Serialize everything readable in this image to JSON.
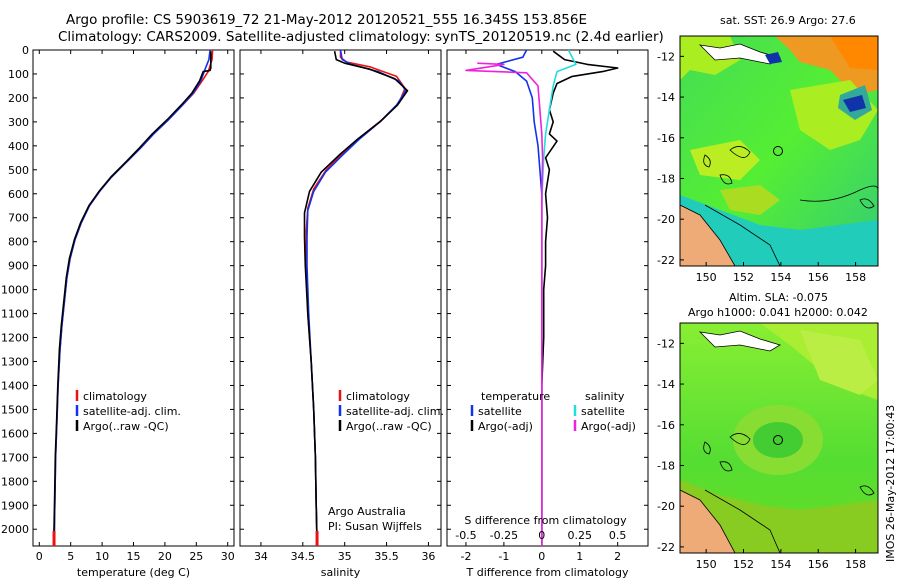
{
  "header": {
    "line1": "Argo profile: CS 5903619_72 21-May-2012 20120521_555 16.345S 153.856E",
    "line2": "Climatology: CARS2009. Satellite-adjusted climatology: synTS_20120519.nc (2.4d earlier)"
  },
  "colors": {
    "climatology": "#ee1111",
    "satellite": "#1133ee",
    "argo": "#000000",
    "sal_sat": "#22dddd",
    "sal_argo": "#ee22dd"
  },
  "depth_axis": {
    "ticks": [
      0,
      100,
      200,
      300,
      400,
      500,
      600,
      700,
      800,
      900,
      1000,
      1100,
      1200,
      1300,
      1400,
      1500,
      1600,
      1700,
      1800,
      1900,
      2000
    ],
    "range": [
      0,
      2070
    ]
  },
  "chart_data": [
    {
      "type": "line",
      "id": "temperature",
      "xlabel": "temperature (deg C)",
      "xlim": [
        -1,
        31
      ],
      "xticks": [
        0,
        5,
        10,
        15,
        20,
        25,
        30
      ],
      "legend": [
        "climatology",
        "satellite-adj. clim.",
        "Argo(..raw -QC)"
      ],
      "series": [
        {
          "name": "climatology",
          "points": [
            [
              27.6,
              0
            ],
            [
              27.5,
              40
            ],
            [
              26.9,
              90
            ],
            [
              25.9,
              130
            ],
            [
              24.6,
              180
            ],
            [
              22.8,
              230
            ],
            [
              20.6,
              290
            ],
            [
              18.2,
              350
            ],
            [
              16.1,
              410
            ],
            [
              13.8,
              470
            ],
            [
              11.5,
              530
            ],
            [
              9.6,
              590
            ],
            [
              8.0,
              650
            ],
            [
              6.7,
              720
            ],
            [
              5.7,
              790
            ],
            [
              4.9,
              870
            ],
            [
              4.4,
              950
            ],
            [
              4.0,
              1050
            ],
            [
              3.6,
              1150
            ],
            [
              3.3,
              1250
            ],
            [
              3.0,
              1400
            ],
            [
              2.8,
              1550
            ],
            [
              2.6,
              1700
            ],
            [
              2.5,
              1850
            ],
            [
              2.4,
              2000
            ],
            [
              2.35,
              2070
            ]
          ]
        },
        {
          "name": "satellite",
          "points": [
            [
              27.2,
              0
            ],
            [
              27.0,
              40
            ],
            [
              26.4,
              80
            ],
            [
              25.7,
              130
            ],
            [
              24.5,
              180
            ],
            [
              22.8,
              230
            ],
            [
              20.6,
              290
            ],
            [
              18.2,
              350
            ],
            [
              16.1,
              410
            ],
            [
              13.8,
              470
            ],
            [
              11.5,
              530
            ],
            [
              9.6,
              590
            ],
            [
              8.0,
              650
            ],
            [
              6.7,
              720
            ],
            [
              5.7,
              790
            ],
            [
              4.9,
              870
            ],
            [
              4.4,
              950
            ],
            [
              4.0,
              1050
            ],
            [
              3.6,
              1150
            ],
            [
              3.3,
              1250
            ],
            [
              3.0,
              1400
            ],
            [
              2.8,
              1550
            ],
            [
              2.6,
              1700
            ],
            [
              2.5,
              1850
            ],
            [
              2.4,
              2000
            ],
            [
              2.35,
              2070
            ]
          ]
        },
        {
          "name": "argo",
          "points": [
            [
              27.3,
              5
            ],
            [
              27.3,
              75
            ],
            [
              27.2,
              85
            ],
            [
              26.1,
              90
            ],
            [
              25.5,
              130
            ],
            [
              24.3,
              180
            ],
            [
              22.6,
              230
            ],
            [
              20.4,
              290
            ],
            [
              18.0,
              350
            ],
            [
              15.9,
              410
            ],
            [
              13.7,
              470
            ],
            [
              11.4,
              530
            ],
            [
              9.5,
              590
            ],
            [
              7.9,
              650
            ],
            [
              6.6,
              720
            ],
            [
              5.6,
              790
            ],
            [
              4.8,
              870
            ],
            [
              4.3,
              950
            ],
            [
              3.9,
              1050
            ],
            [
              3.5,
              1150
            ],
            [
              3.2,
              1250
            ],
            [
              2.95,
              1400
            ],
            [
              2.75,
              1550
            ],
            [
              2.55,
              1700
            ],
            [
              2.45,
              1850
            ],
            [
              2.35,
              2000
            ],
            [
              2.3,
              2070
            ]
          ]
        }
      ]
    },
    {
      "type": "line",
      "id": "salinity",
      "xlabel": "salinity",
      "xlim": [
        33.75,
        36.15
      ],
      "xticks": [
        34,
        34.5,
        35,
        35.5,
        36
      ],
      "legend": [
        "climatology",
        "satellite-adj. clim.",
        "Argo(..raw -QC)"
      ],
      "annotation": [
        "Argo Australia",
        "PI: Susan Wijffels"
      ],
      "series": [
        {
          "name": "climatology",
          "points": [
            [
              34.95,
              0
            ],
            [
              34.95,
              30
            ],
            [
              35.02,
              50
            ],
            [
              35.3,
              70
            ],
            [
              35.62,
              110
            ],
            [
              35.72,
              160
            ],
            [
              35.65,
              220
            ],
            [
              35.45,
              290
            ],
            [
              35.2,
              360
            ],
            [
              34.98,
              430
            ],
            [
              34.78,
              500
            ],
            [
              34.63,
              580
            ],
            [
              34.56,
              660
            ],
            [
              34.54,
              760
            ],
            [
              34.54,
              900
            ],
            [
              34.56,
              1100
            ],
            [
              34.6,
              1300
            ],
            [
              34.63,
              1500
            ],
            [
              34.65,
              1700
            ],
            [
              34.66,
              1900
            ],
            [
              34.67,
              2070
            ]
          ]
        },
        {
          "name": "satellite",
          "points": [
            [
              34.95,
              0
            ],
            [
              34.97,
              40
            ],
            [
              35.08,
              60
            ],
            [
              35.4,
              90
            ],
            [
              35.65,
              130
            ],
            [
              35.73,
              170
            ],
            [
              35.62,
              230
            ],
            [
              35.42,
              300
            ],
            [
              35.18,
              370
            ],
            [
              34.97,
              440
            ],
            [
              34.77,
              510
            ],
            [
              34.63,
              590
            ],
            [
              34.56,
              670
            ],
            [
              34.55,
              780
            ],
            [
              34.55,
              900
            ],
            [
              34.57,
              1100
            ],
            [
              34.6,
              1300
            ],
            [
              34.63,
              1500
            ],
            [
              34.65,
              1700
            ],
            [
              34.66,
              1900
            ],
            [
              34.67,
              2070
            ]
          ]
        },
        {
          "name": "argo",
          "points": [
            [
              34.88,
              5
            ],
            [
              34.9,
              40
            ],
            [
              35.0,
              55
            ],
            [
              35.3,
              80
            ],
            [
              35.6,
              120
            ],
            [
              35.75,
              170
            ],
            [
              35.63,
              230
            ],
            [
              35.42,
              300
            ],
            [
              35.16,
              370
            ],
            [
              34.93,
              440
            ],
            [
              34.72,
              510
            ],
            [
              34.58,
              590
            ],
            [
              34.52,
              680
            ],
            [
              34.52,
              780
            ],
            [
              34.53,
              900
            ],
            [
              34.56,
              1100
            ],
            [
              34.6,
              1300
            ],
            [
              34.63,
              1500
            ],
            [
              34.65,
              1700
            ],
            [
              34.66,
              1900
            ],
            [
              34.67,
              2060
            ]
          ]
        }
      ]
    },
    {
      "type": "line",
      "id": "difference",
      "xlabel": "T difference from climatology",
      "xlim": [
        -2.5,
        2.8
      ],
      "xticks": [
        -2,
        -1,
        0,
        1,
        2
      ],
      "top_label": "S difference from climatology",
      "top_ticks": [
        -0.5,
        -0.25,
        0,
        0.25,
        0.5
      ],
      "legend_left": [
        "temperature",
        "satellite",
        "Argo(-adj)"
      ],
      "legend_right": [
        "salinity",
        "satellite",
        "Argo(-adj)"
      ],
      "series": [
        {
          "name": "temperature-satellite",
          "points": [
            [
              -0.4,
              0
            ],
            [
              -0.5,
              30
            ],
            [
              -1.2,
              60
            ],
            [
              -0.7,
              90
            ],
            [
              -0.4,
              130
            ],
            [
              -0.25,
              200
            ],
            [
              -0.2,
              300
            ],
            [
              -0.1,
              400
            ],
            [
              -0.05,
              500
            ],
            [
              0,
              600
            ],
            [
              0,
              800
            ],
            [
              0,
              1000
            ],
            [
              0,
              1500
            ],
            [
              0,
              2070
            ]
          ]
        },
        {
          "name": "temperature-argo",
          "points": [
            [
              0.3,
              5
            ],
            [
              0.6,
              40
            ],
            [
              1.2,
              60
            ],
            [
              2.0,
              75
            ],
            [
              1.6,
              90
            ],
            [
              0.8,
              110
            ],
            [
              0.4,
              140
            ],
            [
              0.3,
              180
            ],
            [
              0.2,
              250
            ],
            [
              0.3,
              300
            ],
            [
              0.2,
              350
            ],
            [
              0.4,
              380
            ],
            [
              0.1,
              450
            ],
            [
              0.2,
              500
            ],
            [
              0.1,
              600
            ],
            [
              0.15,
              700
            ],
            [
              0.1,
              800
            ],
            [
              0.1,
              900
            ],
            [
              0.05,
              1000
            ],
            [
              0.05,
              1100
            ],
            [
              0.05,
              1200
            ],
            [
              0,
              1400
            ],
            [
              0,
              1700
            ],
            [
              0,
              2070
            ]
          ]
        },
        {
          "name": "salinity-satellite",
          "points": [
            [
              0.7,
              0
            ],
            [
              0.8,
              30
            ],
            [
              0.9,
              60
            ],
            [
              0.4,
              90
            ],
            [
              0.3,
              150
            ],
            [
              0.2,
              250
            ],
            [
              0.1,
              350
            ],
            [
              0.05,
              450
            ],
            [
              0.02,
              550
            ],
            [
              0,
              650
            ],
            [
              0,
              900
            ],
            [
              0,
              1300
            ],
            [
              0,
              2070
            ]
          ]
        },
        {
          "name": "salinity-argo",
          "points": [
            [
              -1.7,
              55
            ],
            [
              -1.0,
              60
            ],
            [
              -2.0,
              85
            ],
            [
              -0.4,
              95
            ],
            [
              -0.1,
              150
            ],
            [
              -0.05,
              250
            ],
            [
              0,
              350
            ],
            [
              0.02,
              450
            ],
            [
              0,
              600
            ],
            [
              0,
              900
            ],
            [
              0,
              2070
            ]
          ]
        }
      ]
    }
  ],
  "maps": {
    "sst_title": "sat. SST: 26.9  Argo: 27.6",
    "sla_title1": "Altim. SLA: -0.075",
    "sla_title2": "Argo h1000: 0.041 h2000: 0.042",
    "lat_ticks": [
      "-12",
      "-14",
      "-16",
      "-18",
      "-20",
      "-22"
    ],
    "lon_ticks": [
      "150",
      "152",
      "154",
      "156",
      "158"
    ]
  },
  "footer": "IMOS 26-May-2012 17:00:43"
}
